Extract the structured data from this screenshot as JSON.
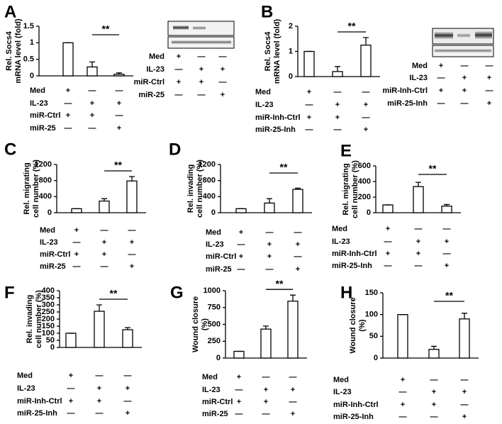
{
  "chart_data": [
    {
      "type": "bar",
      "panel": "A",
      "ylabel": [
        "Rel. Socs4",
        "mRNA level (fold)"
      ],
      "ylim": [
        0,
        1.5
      ],
      "yticks": [
        0,
        0.5,
        1,
        1.5
      ],
      "values": [
        1,
        0.27,
        0.05
      ],
      "errors": [
        0,
        0.15,
        0.04
      ],
      "color": "#ffffff",
      "annotation": "**",
      "conditions": [
        {
          "name": "Med",
          "signs": [
            "+",
            "—",
            "—"
          ]
        },
        {
          "name": "IL-23",
          "signs": [
            "—",
            "+",
            "+"
          ]
        },
        {
          "name": "miR-Ctrl",
          "signs": [
            "+",
            "+",
            "—"
          ]
        },
        {
          "name": "miR-25",
          "signs": [
            "—",
            "—",
            "+"
          ]
        }
      ],
      "blot": {
        "conditions": [
          {
            "name": "Med",
            "signs": [
              "+",
              "—",
              "—"
            ]
          },
          {
            "name": "IL-23",
            "signs": [
              "—",
              "+",
              "+"
            ]
          },
          {
            "name": "miR-Ctrl",
            "signs": [
              "+",
              "+",
              "—"
            ]
          },
          {
            "name": "miR-25",
            "signs": [
              "—",
              "—",
              "+"
            ]
          }
        ]
      }
    },
    {
      "type": "bar",
      "panel": "B",
      "ylabel": [
        "Rel. Socs4",
        "mRNA level (fold)"
      ],
      "ylim": [
        0,
        2
      ],
      "yticks": [
        0,
        1,
        2
      ],
      "values": [
        1,
        0.2,
        1.25
      ],
      "errors": [
        0,
        0.2,
        0.3
      ],
      "color": "#ffffff",
      "annotation": "**",
      "conditions": [
        {
          "name": "Med",
          "signs": [
            "+",
            "—",
            "—"
          ]
        },
        {
          "name": "IL-23",
          "signs": [
            "—",
            "+",
            "+"
          ]
        },
        {
          "name": "miR-Inh-Ctrl",
          "signs": [
            "+",
            "+",
            "—"
          ]
        },
        {
          "name": "miR-25-Inh",
          "signs": [
            "—",
            "—",
            "+"
          ]
        }
      ],
      "blot": {
        "conditions": [
          {
            "name": "Med",
            "signs": [
              "+",
              "—",
              "—"
            ]
          },
          {
            "name": "IL-23",
            "signs": [
              "—",
              "+",
              "+"
            ]
          },
          {
            "name": "miR-Inh-Ctrl",
            "signs": [
              "+",
              "+",
              "—"
            ]
          },
          {
            "name": "miR-25-Inh",
            "signs": [
              "—",
              "—",
              "+"
            ]
          }
        ]
      }
    },
    {
      "type": "bar",
      "panel": "C",
      "ylabel": [
        "Rel. migrating",
        "cell number (%)"
      ],
      "ylim": [
        0,
        1200
      ],
      "yticks": [
        0,
        400,
        800,
        1200
      ],
      "values": [
        100,
        290,
        790
      ],
      "errors": [
        0,
        60,
        110
      ],
      "color": "#ffffff",
      "annotation": "**",
      "conditions": [
        {
          "name": "Med",
          "signs": [
            "+",
            "—",
            "—"
          ]
        },
        {
          "name": "IL-23",
          "signs": [
            "—",
            "+",
            "+"
          ]
        },
        {
          "name": "miR-Ctrl",
          "signs": [
            "+",
            "+",
            "—"
          ]
        },
        {
          "name": "miR-25",
          "signs": [
            "—",
            "—",
            "+"
          ]
        }
      ]
    },
    {
      "type": "bar",
      "panel": "D",
      "ylabel": [
        "Rel. invading",
        "cell number (%)"
      ],
      "ylim": [
        0,
        1200
      ],
      "yticks": [
        0,
        400,
        800,
        1200
      ],
      "values": [
        100,
        240,
        580
      ],
      "errors": [
        0,
        110,
        30
      ],
      "color": "#ffffff",
      "annotation": "**",
      "conditions": [
        {
          "name": "Med",
          "signs": [
            "+",
            "—",
            "—"
          ]
        },
        {
          "name": "IL-23",
          "signs": [
            "—",
            "+",
            "+"
          ]
        },
        {
          "name": "miR-Ctrl",
          "signs": [
            "+",
            "+",
            "—"
          ]
        },
        {
          "name": "miR-25",
          "signs": [
            "—",
            "—",
            "+"
          ]
        }
      ]
    },
    {
      "type": "bar",
      "panel": "E",
      "ylabel": [
        "Rel. migrating",
        "cell number (%)"
      ],
      "ylim": [
        0,
        600
      ],
      "yticks": [
        0,
        200,
        400,
        600
      ],
      "values": [
        100,
        335,
        85
      ],
      "errors": [
        0,
        55,
        20
      ],
      "color": "#ffffff",
      "annotation": "**",
      "conditions": [
        {
          "name": "Med",
          "signs": [
            "+",
            "—",
            "—"
          ]
        },
        {
          "name": "IL-23",
          "signs": [
            "—",
            "+",
            "+"
          ]
        },
        {
          "name": "miR-Inh-Ctrl",
          "signs": [
            "+",
            "+",
            "—"
          ]
        },
        {
          "name": "miR-25-Inh",
          "signs": [
            "—",
            "—",
            "+"
          ]
        }
      ]
    },
    {
      "type": "bar",
      "panel": "F",
      "ylabel": [
        "Rel. invading",
        "cell number (%)"
      ],
      "ylim": [
        0,
        400
      ],
      "yticks": [
        0,
        50,
        100,
        150,
        200,
        250,
        300,
        350,
        400
      ],
      "values": [
        100,
        255,
        125
      ],
      "errors": [
        0,
        45,
        15
      ],
      "color": "#ffffff",
      "annotation": "**",
      "conditions": [
        {
          "name": "Med",
          "signs": [
            "+",
            "—",
            "—"
          ]
        },
        {
          "name": "IL-23",
          "signs": [
            "—",
            "+",
            "+"
          ]
        },
        {
          "name": "miR-Inh-Ctrl",
          "signs": [
            "+",
            "+",
            "—"
          ]
        },
        {
          "name": "miR-25-Inh",
          "signs": [
            "—",
            "—",
            "+"
          ]
        }
      ]
    },
    {
      "type": "bar",
      "panel": "G",
      "ylabel": [
        "Wound closure",
        "(%)"
      ],
      "ylim": [
        0,
        1000
      ],
      "yticks": [
        0,
        250,
        500,
        750,
        1000
      ],
      "values": [
        100,
        430,
        845
      ],
      "errors": [
        0,
        45,
        90
      ],
      "color": "#ffffff",
      "annotation": "**",
      "conditions": [
        {
          "name": "Med",
          "signs": [
            "+",
            "—",
            "—"
          ]
        },
        {
          "name": "IL-23",
          "signs": [
            "—",
            "+",
            "+"
          ]
        },
        {
          "name": "miR-Ctrl",
          "signs": [
            "+",
            "+",
            "—"
          ]
        },
        {
          "name": "miR-25",
          "signs": [
            "—",
            "—",
            "+"
          ]
        }
      ]
    },
    {
      "type": "bar",
      "panel": "H",
      "ylabel": [
        "Wound closure",
        "(%)"
      ],
      "ylim": [
        0,
        150
      ],
      "yticks": [
        0,
        50,
        100,
        150
      ],
      "values": [
        100,
        20,
        90
      ],
      "errors": [
        0,
        7,
        13
      ],
      "color": "#ffffff",
      "annotation": "**",
      "conditions": [
        {
          "name": "Med",
          "signs": [
            "+",
            "—",
            "—"
          ]
        },
        {
          "name": "IL-23",
          "signs": [
            "—",
            "+",
            "+"
          ]
        },
        {
          "name": "miR-Inh-Ctrl",
          "signs": [
            "+",
            "+",
            "—"
          ]
        },
        {
          "name": "miR-25-Inh",
          "signs": [
            "—",
            "—",
            "+"
          ]
        }
      ]
    }
  ]
}
